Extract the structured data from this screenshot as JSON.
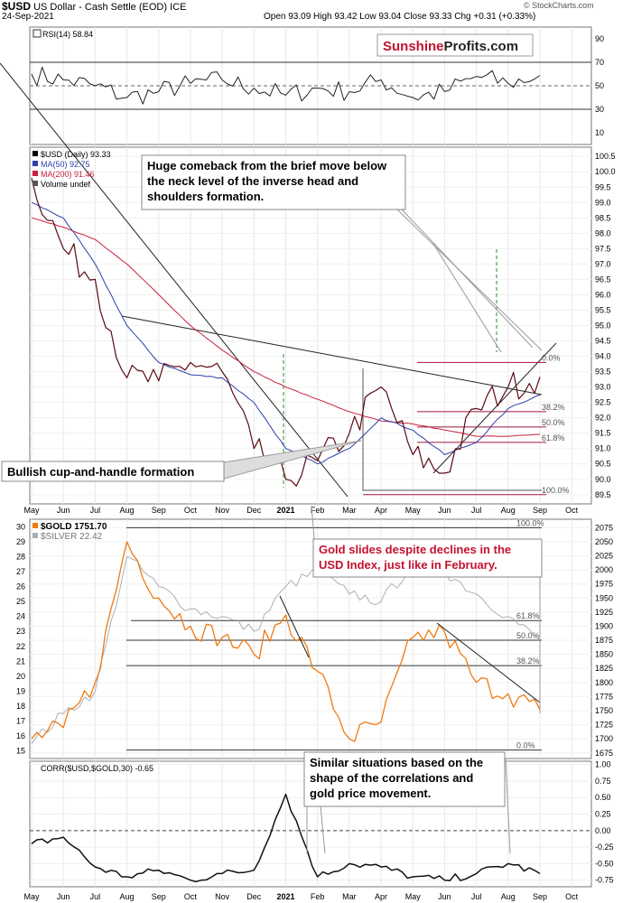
{
  "header": {
    "symbol": "$USD",
    "name": "US Dollar - Cash Settle (EOD)",
    "exchange": "ICE",
    "date": "24-Sep-2021",
    "ohlc": "Open 93.09  High 93.42  Low 93.04  Close 93.33  Chg +0.31 (+0.33%)",
    "copyright": "© StockCharts.com"
  },
  "brand": {
    "part1": "Sunshine",
    "part2": "Profits.com"
  },
  "chart_data": [
    {
      "type": "line",
      "panel": "rsi",
      "legend": [
        "RSI(14) 58.84"
      ],
      "ylim": [
        0,
        100
      ],
      "y_ticks": [
        10,
        30,
        50,
        70,
        90
      ],
      "reference_lines": [
        30,
        50,
        70
      ],
      "x": [
        "May",
        "Jun",
        "Jul",
        "Aug",
        "Sep",
        "Oct",
        "Nov",
        "Dec",
        "2021",
        "Feb",
        "Mar",
        "Apr",
        "May",
        "Jun",
        "Jul",
        "Aug",
        "Sep"
      ],
      "series": [
        {
          "name": "RSI(14)",
          "values": [
            60,
            55,
            50,
            40,
            45,
            52,
            55,
            48,
            42,
            48,
            45,
            55,
            40,
            45,
            58,
            52,
            58.84
          ]
        }
      ]
    },
    {
      "type": "line",
      "panel": "usd",
      "title": "$USD (Daily) 93.33",
      "legend": [
        "$USD (Daily) 93.33",
        "MA(50) 92.75",
        "MA(200) 91.46",
        "Volume undef"
      ],
      "ylim": [
        89.2,
        100.8
      ],
      "y_ticks": [
        89.5,
        90.0,
        90.5,
        91.0,
        91.5,
        92.0,
        92.5,
        93.0,
        93.5,
        94.0,
        94.5,
        95.0,
        95.5,
        96.0,
        96.5,
        97.0,
        97.5,
        98.0,
        98.5,
        99.0,
        99.5,
        100.0,
        100.5
      ],
      "x_ticks": [
        "May",
        "Jun",
        "Jul",
        "Aug",
        "Sep",
        "Oct",
        "Nov",
        "Dec",
        "2021",
        "Feb",
        "Mar",
        "Apr",
        "May",
        "Jun",
        "Jul",
        "Aug",
        "Sep",
        "Oct",
        "Nov"
      ],
      "x": [
        "May",
        "Jun",
        "Jul",
        "Aug",
        "Sep",
        "Oct",
        "Nov",
        "Dec",
        "2021",
        "Feb",
        "Mar",
        "Apr",
        "May",
        "Jun",
        "Jul",
        "Aug",
        "Sep"
      ],
      "series": [
        {
          "name": "$USD",
          "values": [
            99.8,
            97.5,
            96.5,
            93.3,
            93.2,
            93.8,
            93.5,
            91.0,
            90.0,
            90.6,
            91.5,
            93.0,
            90.8,
            90.2,
            92.3,
            93.0,
            93.33
          ]
        },
        {
          "name": "MA(50)",
          "values": [
            99.0,
            98.5,
            97.0,
            95.0,
            93.8,
            93.4,
            93.3,
            92.5,
            91.0,
            90.5,
            91.0,
            92.0,
            91.6,
            90.8,
            91.2,
            92.3,
            92.75
          ]
        },
        {
          "name": "MA(200)",
          "values": [
            98.5,
            98.2,
            97.8,
            97.0,
            96.0,
            95.0,
            94.2,
            93.5,
            93.0,
            92.6,
            92.2,
            91.9,
            91.8,
            91.6,
            91.4,
            91.4,
            91.46
          ]
        }
      ],
      "fibonacci": [
        {
          "label": "0.0%",
          "value": 93.8
        },
        {
          "label": "38.2%",
          "value": 92.2
        },
        {
          "label": "50.0%",
          "value": 91.7
        },
        {
          "label": "61.8%",
          "value": 91.2
        },
        {
          "label": "100.0%",
          "value": 89.5
        }
      ]
    },
    {
      "type": "line",
      "panel": "gold_silver",
      "legend": [
        "$GOLD 1751.70",
        "$SILVER 22.42"
      ],
      "ylim_left": [
        14.5,
        30.5
      ],
      "y_ticks_left": [
        15,
        16,
        17,
        18,
        19,
        20,
        21,
        22,
        23,
        24,
        25,
        26,
        27,
        28,
        29,
        30
      ],
      "ylim_right": [
        1665,
        2090
      ],
      "y_ticks_right": [
        1675,
        1700,
        1725,
        1750,
        1775,
        1800,
        1825,
        1850,
        1875,
        1900,
        1925,
        1950,
        1975,
        2000,
        2025,
        2050,
        2075
      ],
      "x": [
        "May",
        "Jun",
        "Jul",
        "Aug",
        "Sep",
        "Oct",
        "Nov",
        "Dec",
        "2021",
        "Feb",
        "Mar",
        "Apr",
        "May",
        "Jun",
        "Jul",
        "Aug",
        "Sep"
      ],
      "series": [
        {
          "name": "$GOLD",
          "values": [
            1700,
            1720,
            1800,
            2050,
            1950,
            1900,
            1880,
            1850,
            1920,
            1820,
            1700,
            1730,
            1880,
            1890,
            1800,
            1780,
            1751.7
          ]
        },
        {
          "name": "$SILVER",
          "values": [
            15.5,
            17.5,
            19.0,
            28.0,
            26.0,
            24.5,
            24.0,
            23.0,
            26.0,
            27.0,
            25.5,
            25.0,
            27.5,
            27.0,
            25.5,
            24.0,
            22.42
          ]
        }
      ],
      "fibonacci": [
        {
          "label": "100.0%",
          "value": 2075
        },
        {
          "label": "61.8%",
          "value": 1910
        },
        {
          "label": "50.0%",
          "value": 1875
        },
        {
          "label": "38.2%",
          "value": 1830
        },
        {
          "label": "0.0%",
          "value": 1680
        }
      ]
    },
    {
      "type": "line",
      "panel": "corr",
      "legend": [
        "CORR($USD,$GOLD,30) -0.65"
      ],
      "ylim": [
        -0.85,
        1.05
      ],
      "y_ticks": [
        -0.75,
        -0.5,
        -0.25,
        0.0,
        0.25,
        0.5,
        0.75,
        1.0
      ],
      "y_tick_labels": [
        "-0.75",
        "-0.50",
        "-0.25",
        "0.00",
        "0.25",
        "0.50",
        "0.75",
        "1.00"
      ],
      "x": [
        "May",
        "Jun",
        "Jul",
        "Aug",
        "Sep",
        "Oct",
        "Nov",
        "Dec",
        "2021",
        "Feb",
        "Mar",
        "Apr",
        "May",
        "Jun",
        "Jul",
        "Aug",
        "Sep"
      ],
      "series": [
        {
          "name": "CORR($USD,$GOLD,30)",
          "values": [
            -0.2,
            -0.1,
            -0.55,
            -0.7,
            -0.6,
            -0.75,
            -0.65,
            -0.6,
            0.55,
            -0.7,
            -0.5,
            -0.55,
            -0.7,
            -0.75,
            -0.65,
            -0.5,
            -0.65
          ]
        }
      ]
    }
  ],
  "annotations": {
    "huge_comeback": "Huge comeback from the brief move below the neck level of the inverse head and shoulders formation.",
    "cup_handle": "Bullish cup-and-handle formation",
    "gold_slides": "Gold slides despite declines in the USD Index, just like in February.",
    "similar_situations": "Similar situations based on the shape of the correlations and gold price movement."
  }
}
